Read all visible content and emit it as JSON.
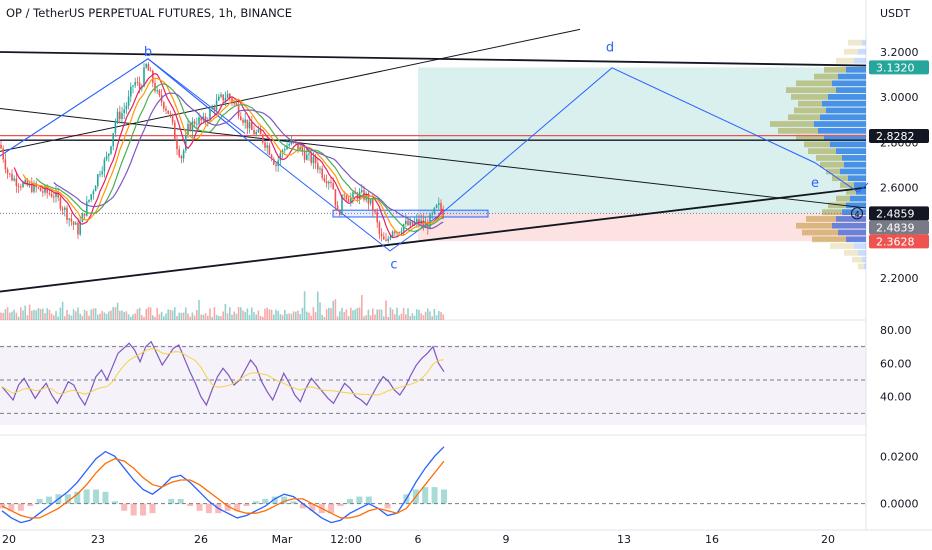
{
  "title": "OP / TetherUS PERPETUAL FUTURES, 1h, BINANCE",
  "currency": "USDT",
  "chart_data": {
    "type": "candlestick",
    "symbol": "OP / TetherUS PERPETUAL FUTURES",
    "interval": "1h",
    "exchange": "BINANCE",
    "price_axis": {
      "ticks": [
        "3.2000",
        "3.0000",
        "2.8000",
        "2.6000",
        "2.4000",
        "2.2000"
      ],
      "ylim": [
        2.12,
        3.27
      ]
    },
    "price_tags": [
      {
        "label": "3.1320",
        "value": 3.132,
        "color": "#26a69a"
      },
      {
        "label": "2.8282",
        "value": 2.8282,
        "color": "#131722"
      },
      {
        "label": "2.4859",
        "value": 2.4859,
        "color": "#131722"
      },
      {
        "label": "2.4839",
        "value": 2.4839,
        "color": "#787b86"
      },
      {
        "label": "2.3628",
        "value": 2.3628,
        "color": "#ef5350"
      }
    ],
    "time_axis": [
      "20",
      "23",
      "26",
      "Mar",
      "12:00",
      "6",
      "9",
      "13",
      "16",
      "20"
    ],
    "price_path": [
      [
        0,
        2.79
      ],
      [
        8,
        2.66
      ],
      [
        16,
        2.63
      ],
      [
        24,
        2.61
      ],
      [
        34,
        2.6
      ],
      [
        44,
        2.58
      ],
      [
        54,
        2.57
      ],
      [
        62,
        2.52
      ],
      [
        70,
        2.46
      ],
      [
        78,
        2.41
      ],
      [
        84,
        2.49
      ],
      [
        92,
        2.58
      ],
      [
        100,
        2.68
      ],
      [
        108,
        2.74
      ],
      [
        116,
        2.91
      ],
      [
        122,
        2.93
      ],
      [
        128,
        2.98
      ],
      [
        134,
        3.07
      ],
      [
        140,
        3.04
      ],
      [
        146,
        3.14
      ],
      [
        152,
        3.08
      ],
      [
        158,
        3.0
      ],
      [
        164,
        2.97
      ],
      [
        170,
        2.92
      ],
      [
        176,
        2.8
      ],
      [
        182,
        2.73
      ],
      [
        188,
        2.86
      ],
      [
        196,
        2.9
      ],
      [
        204,
        2.89
      ],
      [
        212,
        2.95
      ],
      [
        220,
        2.99
      ],
      [
        228,
        3.01
      ],
      [
        236,
        2.96
      ],
      [
        244,
        2.9
      ],
      [
        252,
        2.85
      ],
      [
        260,
        2.83
      ],
      [
        268,
        2.78
      ],
      [
        276,
        2.7
      ],
      [
        284,
        2.78
      ],
      [
        292,
        2.8
      ],
      [
        300,
        2.77
      ],
      [
        308,
        2.73
      ],
      [
        316,
        2.71
      ],
      [
        324,
        2.65
      ],
      [
        332,
        2.63
      ],
      [
        338,
        2.47
      ],
      [
        344,
        2.58
      ],
      [
        350,
        2.55
      ],
      [
        358,
        2.57
      ],
      [
        366,
        2.56
      ],
      [
        374,
        2.5
      ],
      [
        380,
        2.38
      ],
      [
        386,
        2.35
      ],
      [
        392,
        2.42
      ],
      [
        398,
        2.41
      ],
      [
        404,
        2.44
      ],
      [
        410,
        2.43
      ],
      [
        418,
        2.45
      ],
      [
        426,
        2.43
      ],
      [
        432,
        2.47
      ],
      [
        438,
        2.52
      ],
      [
        444,
        2.48
      ]
    ],
    "wave_labels": [
      {
        "label": "b",
        "value": 3.2
      },
      {
        "label": "c",
        "value": 2.26
      },
      {
        "label": "d",
        "value": 3.22
      },
      {
        "label": "e",
        "value": 2.62
      }
    ],
    "position_zones": {
      "target": 3.132,
      "entry": 2.4859,
      "stop": 2.3628
    },
    "rsi": {
      "ticks": [
        "80.00",
        "60.00",
        "40.00"
      ],
      "bands": [
        70,
        50,
        30
      ],
      "ylim": [
        23,
        83
      ],
      "series": [
        46,
        42,
        38,
        47,
        51,
        45,
        39,
        44,
        48,
        41,
        36,
        42,
        49,
        47,
        40,
        35,
        43,
        52,
        56,
        50,
        58,
        66,
        69,
        72,
        68,
        61,
        70,
        73,
        66,
        59,
        64,
        69,
        71,
        63,
        55,
        48,
        40,
        35,
        44,
        52,
        57,
        53,
        47,
        50,
        56,
        62,
        58,
        49,
        43,
        38,
        46,
        54,
        48,
        41,
        37,
        45,
        51,
        47,
        43,
        39,
        36,
        42,
        48,
        45,
        40,
        38,
        35,
        41,
        47,
        52,
        49,
        44,
        41,
        46,
        53,
        59,
        63,
        66,
        70,
        60,
        55
      ]
    },
    "macd": {
      "ticks": [
        "0.0200",
        "0.0000"
      ],
      "ylim": [
        -0.009,
        0.029
      ],
      "macd_line": [
        -0.003,
        -0.006,
        -0.008,
        -0.007,
        -0.004,
        -0.001,
        0.002,
        0.005,
        0.009,
        0.014,
        0.019,
        0.022,
        0.02,
        0.015,
        0.01,
        0.006,
        0.004,
        0.007,
        0.011,
        0.012,
        0.009,
        0.005,
        0.001,
        -0.002,
        -0.004,
        -0.006,
        -0.005,
        -0.003,
        -0.001,
        0.002,
        0.004,
        0.003,
        0.0,
        -0.003,
        -0.006,
        -0.008,
        -0.007,
        -0.004,
        -0.002,
        0.0,
        -0.002,
        -0.005,
        -0.004,
        0.002,
        0.009,
        0.015,
        0.02,
        0.024
      ],
      "signal_line": [
        -0.001,
        -0.003,
        -0.005,
        -0.006,
        -0.006,
        -0.004,
        -0.002,
        0.001,
        0.004,
        0.008,
        0.013,
        0.017,
        0.019,
        0.018,
        0.015,
        0.011,
        0.008,
        0.007,
        0.009,
        0.01,
        0.01,
        0.008,
        0.005,
        0.002,
        -0.001,
        -0.003,
        -0.004,
        -0.004,
        -0.003,
        -0.001,
        0.001,
        0.002,
        0.002,
        0.0,
        -0.002,
        -0.004,
        -0.006,
        -0.006,
        -0.005,
        -0.003,
        -0.002,
        -0.003,
        -0.004,
        -0.002,
        0.003,
        0.008,
        0.013,
        0.018
      ]
    }
  }
}
